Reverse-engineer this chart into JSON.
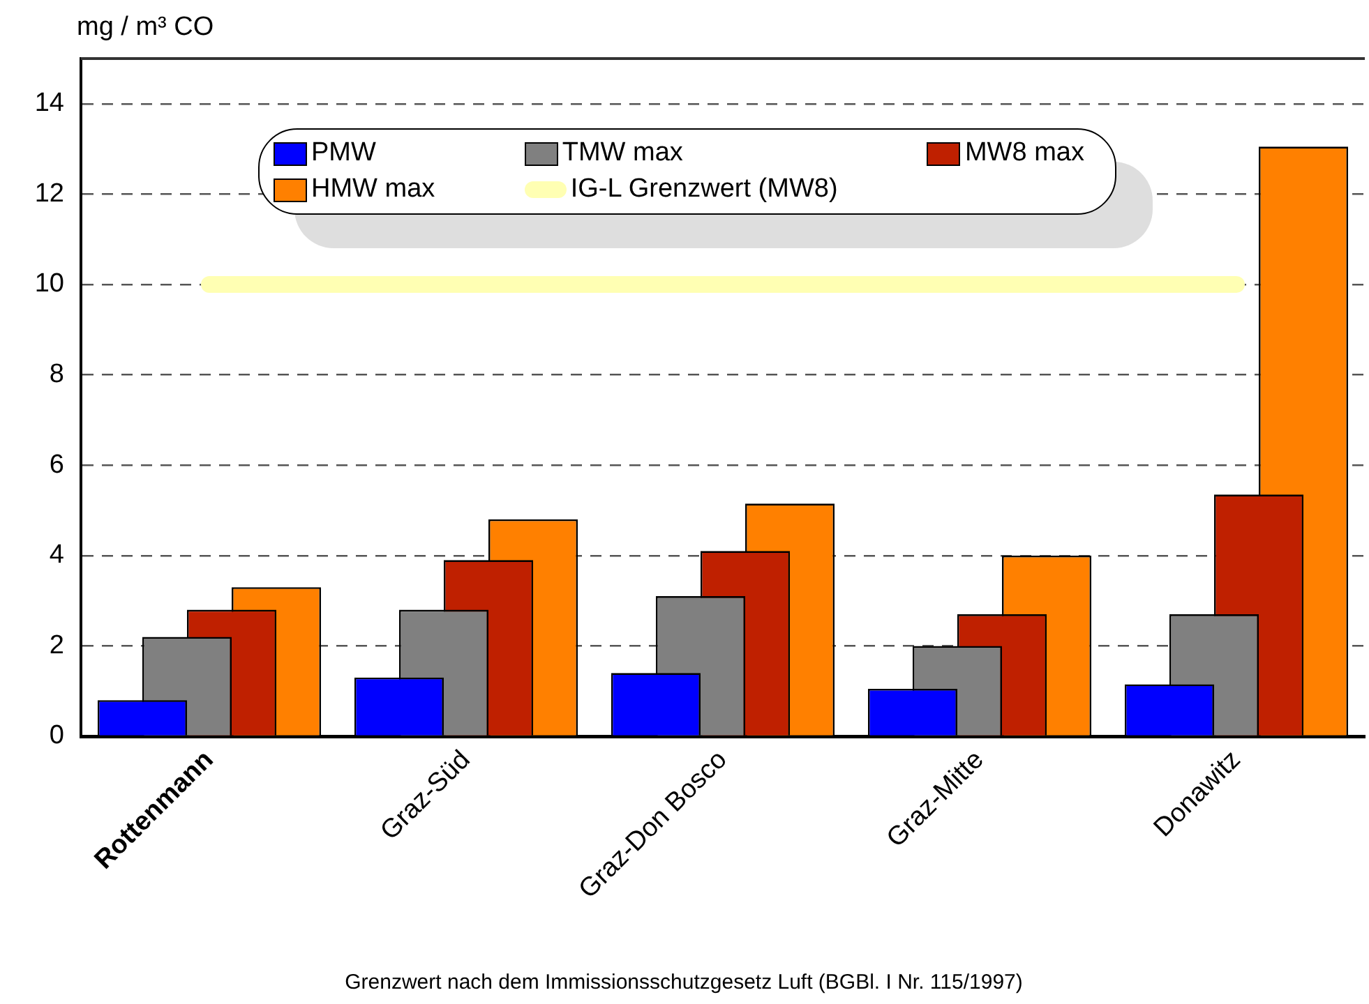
{
  "chart_data": {
    "type": "bar",
    "ylabel": "mg / m³ CO",
    "annotations": [
      "Grenzwert nach dem Immissionsschutzgesetz Luft (BGBl. I Nr. 115/1997)"
    ],
    "categories": [
      "Rottenmann",
      "Graz-Süd",
      "Graz-Don Bosco",
      "Graz-Mitte",
      "Donawitz"
    ],
    "series": [
      {
        "name": "PMW",
        "color": "#0000ff",
        "values": [
          0.8,
          1.3,
          1.4,
          1.05,
          1.15
        ]
      },
      {
        "name": "TMW max",
        "color": "#808080",
        "values": [
          2.2,
          2.8,
          3.1,
          2.0,
          2.7
        ]
      },
      {
        "name": "MW8 max",
        "color": "#bf2000",
        "values": [
          2.8,
          3.9,
          4.1,
          2.7,
          5.35
        ]
      },
      {
        "name": "HMW max",
        "color": "#ff8000",
        "values": [
          3.3,
          4.8,
          5.15,
          4.0,
          13.05
        ]
      },
      {
        "name": "IG-L Grenzwert (MW8)",
        "type": "line",
        "color": "#ffffb3",
        "values": [
          10,
          10,
          10,
          10,
          10
        ]
      }
    ],
    "ylim": [
      0,
      15
    ],
    "yticks": [
      0,
      2,
      4,
      6,
      8,
      10,
      12,
      14
    ],
    "grid": "y",
    "legend": "top"
  }
}
